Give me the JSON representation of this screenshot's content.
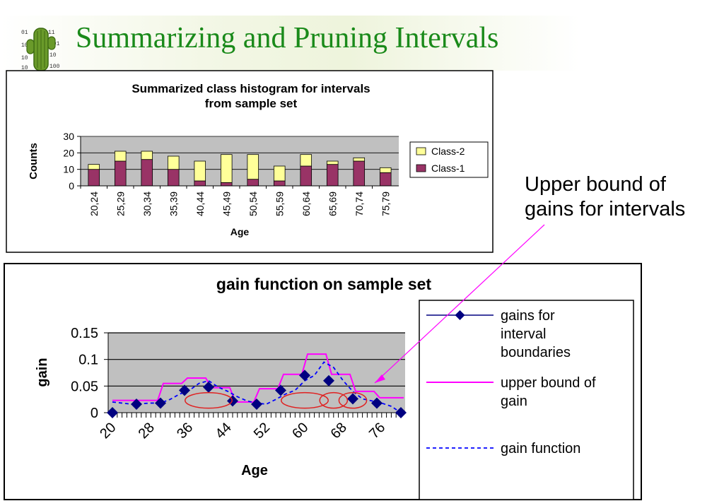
{
  "slide": {
    "title": "Summarizing and Pruning Intervals",
    "callout": [
      "Upper bound of",
      "gains for intervals"
    ]
  },
  "colors": {
    "title": "#1a8a1a",
    "class1": "#993366",
    "class2": "#ffff99",
    "gains": "#000080",
    "upper_bound": "#ff00ff",
    "gain_function": "#0000ff",
    "plot_bg": "#c0c0c0",
    "highlight": "#e02020"
  },
  "chart_data": [
    {
      "type": "bar",
      "stacked": true,
      "title": "Summarized class histogram for intervals from sample set",
      "xlabel": "Age",
      "ylabel": "Counts",
      "categories": [
        "20,24",
        "25,29",
        "30,34",
        "35,39",
        "40,44",
        "45,49",
        "50,54",
        "55,59",
        "60,64",
        "65,69",
        "70,74",
        "75,79"
      ],
      "series": [
        {
          "name": "Class-1",
          "values": [
            10,
            15,
            16,
            10,
            3,
            2,
            4,
            3,
            12,
            13,
            15,
            8
          ]
        },
        {
          "name": "Class-2",
          "values": [
            3,
            6,
            5,
            8,
            12,
            17,
            15,
            9,
            7,
            2,
            2,
            3
          ]
        }
      ],
      "ylim": [
        0,
        30
      ],
      "yticks": [
        0,
        10,
        20,
        30
      ],
      "legend": "right",
      "grid": true
    },
    {
      "type": "line",
      "title": "gain function on sample set",
      "xlabel": "Age",
      "ylabel": "gain",
      "xlim": [
        20,
        80
      ],
      "ylim": [
        0,
        0.15
      ],
      "xticks": [
        20,
        28,
        36,
        44,
        52,
        60,
        68,
        76
      ],
      "yticks": [
        0,
        0.05,
        0.1,
        0.15
      ],
      "ytick_labels": [
        "0",
        "0.05",
        "0.1",
        "0.15"
      ],
      "legend": "right",
      "grid": true,
      "series": [
        {
          "name": "gains for interval boundaries",
          "style": "solid-diamond",
          "x": [
            20,
            25,
            30,
            35,
            40,
            45,
            50,
            55,
            60,
            65,
            70,
            75,
            80
          ],
          "y": [
            0,
            0.016,
            0.018,
            0.042,
            0.048,
            0.022,
            0.016,
            0.042,
            0.07,
            0.06,
            0.026,
            0.018,
            0
          ]
        },
        {
          "name": "upper bound of gain",
          "style": "step",
          "x": [
            20,
            25,
            30,
            35,
            40,
            45,
            50,
            55,
            60,
            65,
            70,
            75,
            80
          ],
          "y": [
            0.023,
            0.023,
            0.055,
            0.065,
            0.047,
            0.02,
            0.045,
            0.072,
            0.11,
            0.072,
            0.04,
            0.028,
            0.028
          ]
        },
        {
          "name": "gain function",
          "style": "dashed",
          "x": [
            20,
            22,
            24,
            26,
            28,
            30,
            32,
            34,
            36,
            38,
            40,
            42,
            44,
            46,
            48,
            50,
            52,
            54,
            56,
            58,
            60,
            62,
            64,
            66,
            68,
            70,
            72,
            74,
            76,
            78,
            80
          ],
          "y": [
            0.02,
            0.018,
            0.016,
            0.017,
            0.018,
            0.018,
            0.025,
            0.035,
            0.042,
            0.055,
            0.06,
            0.048,
            0.04,
            0.03,
            0.022,
            0.018,
            0.016,
            0.025,
            0.035,
            0.042,
            0.06,
            0.07,
            0.095,
            0.085,
            0.06,
            0.04,
            0.026,
            0.022,
            0.018,
            0.012,
            0
          ]
        }
      ],
      "highlighted_intervals": [
        [
          36,
          44
        ],
        [
          56,
          64
        ],
        [
          64,
          68
        ],
        [
          68,
          72
        ]
      ]
    }
  ]
}
